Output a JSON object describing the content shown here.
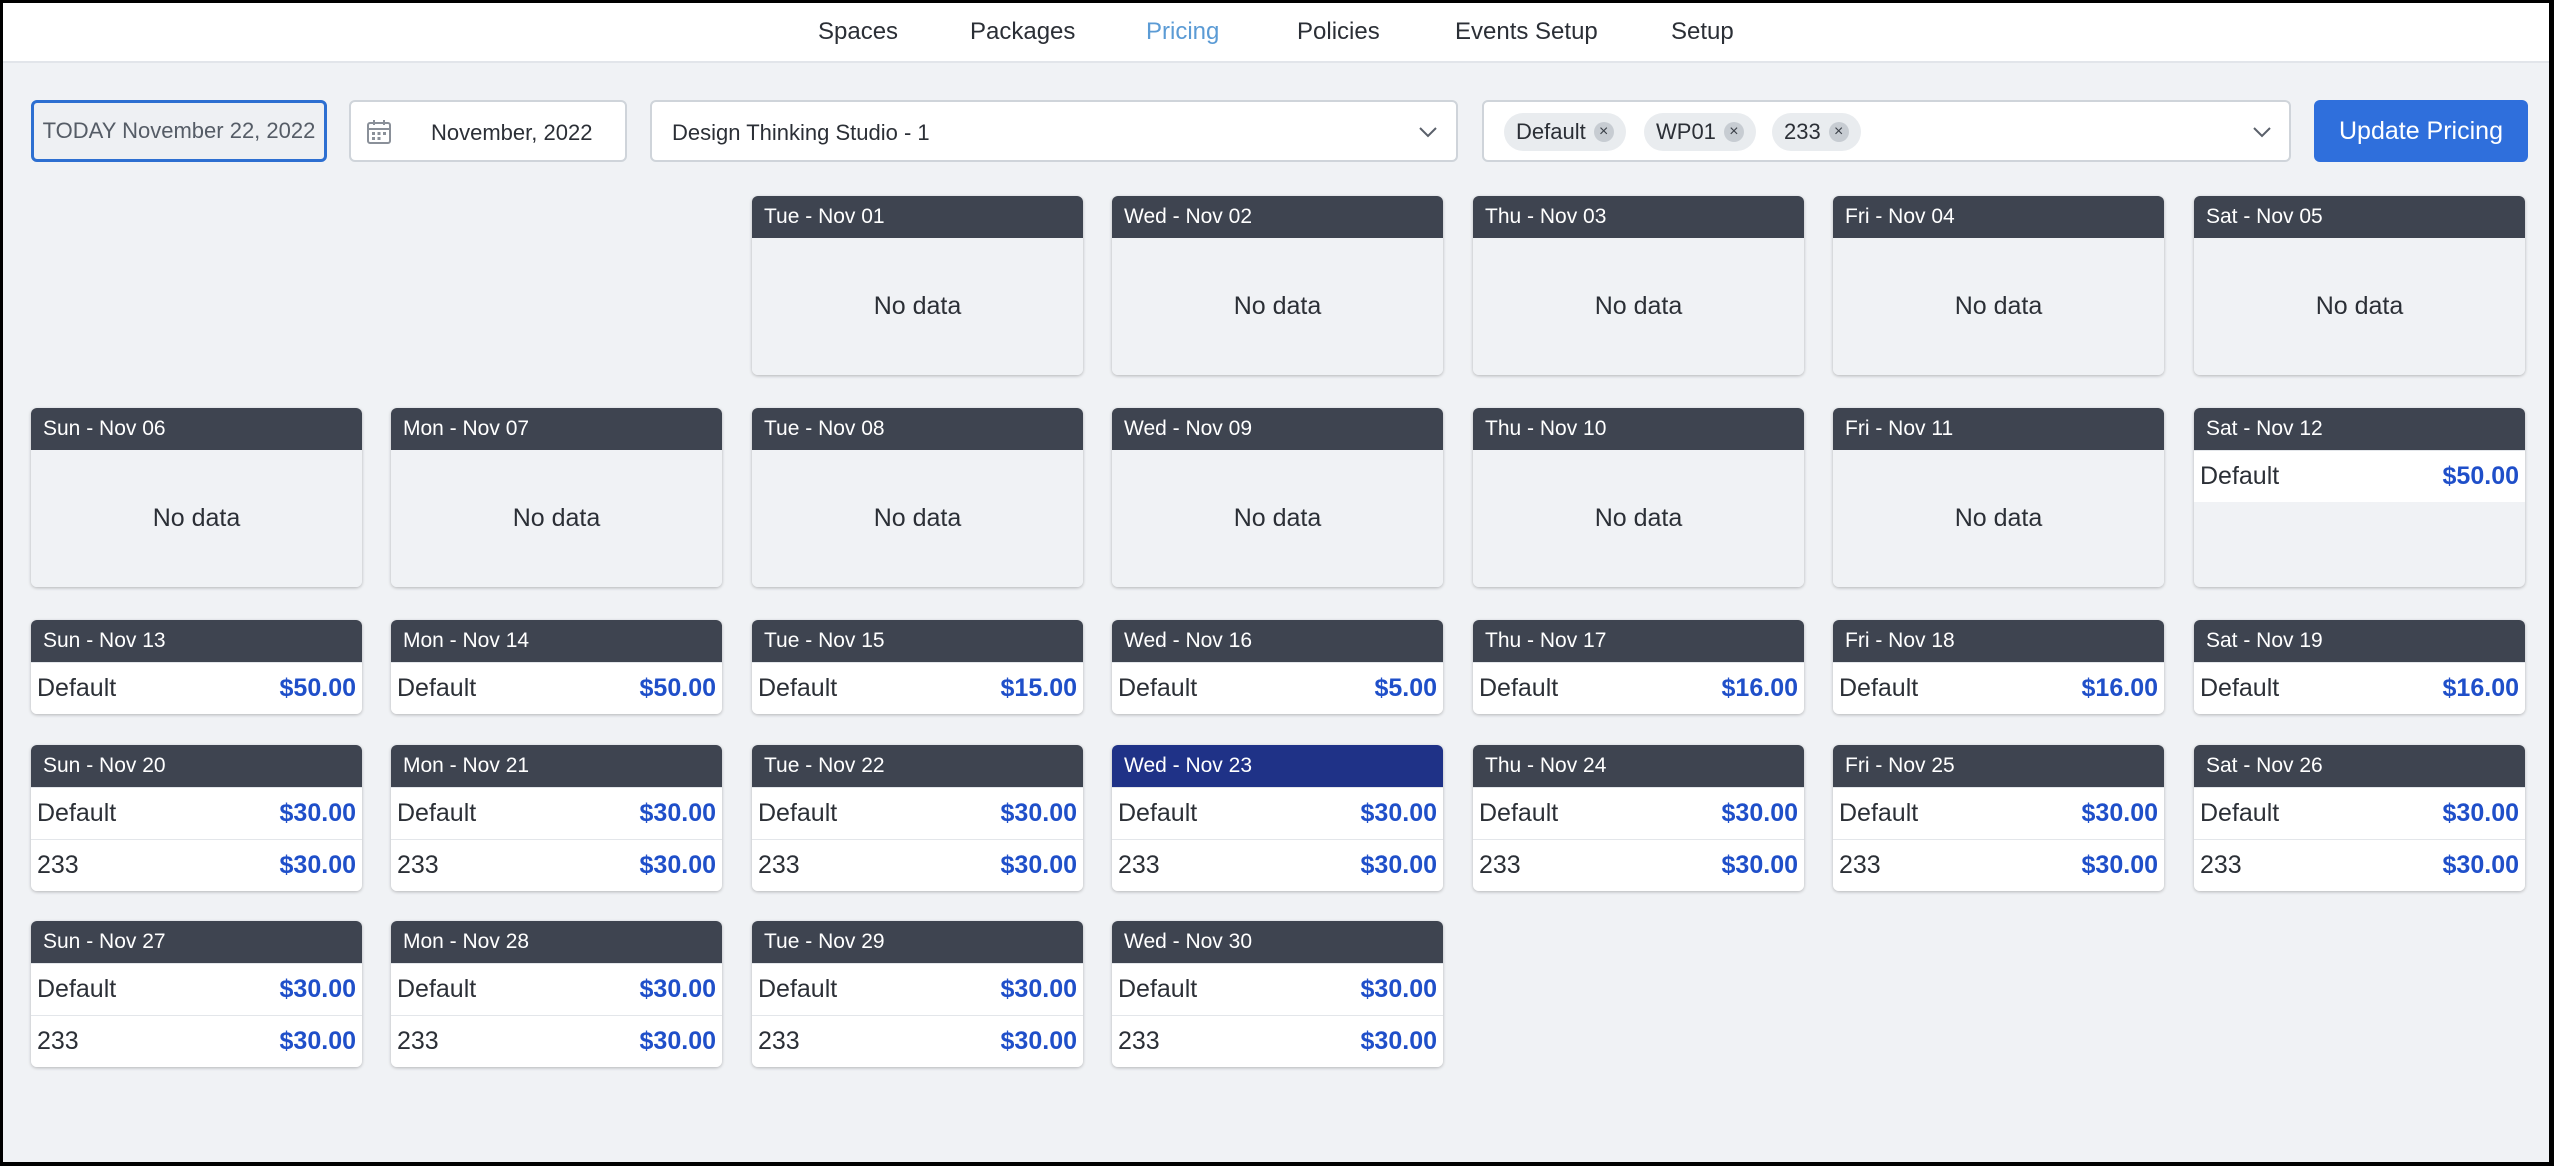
{
  "nav": {
    "items": [
      {
        "label": "Spaces"
      },
      {
        "label": "Packages"
      },
      {
        "label": "Pricing"
      },
      {
        "label": "Policies"
      },
      {
        "label": "Events Setup"
      },
      {
        "label": "Setup"
      }
    ]
  },
  "toolbar": {
    "today_label": "TODAY November 22, 2022",
    "month_value": "November, 2022",
    "space_value": "Design Thinking Studio - 1",
    "tags": [
      {
        "label": "Default"
      },
      {
        "label": "WP01"
      },
      {
        "label": "233"
      }
    ],
    "update_label": "Update Pricing"
  },
  "calendar": {
    "no_data_text": "No data",
    "row1": [
      {
        "head": "Tue - Nov 01"
      },
      {
        "head": "Wed - Nov 02"
      },
      {
        "head": "Thu - Nov 03"
      },
      {
        "head": "Fri - Nov 04"
      },
      {
        "head": "Sat - Nov 05"
      }
    ],
    "row2": [
      {
        "head": "Sun - Nov 06"
      },
      {
        "head": "Mon - Nov 07"
      },
      {
        "head": "Tue - Nov 08"
      },
      {
        "head": "Wed - Nov 09"
      },
      {
        "head": "Thu - Nov 10"
      },
      {
        "head": "Fri - Nov 11"
      },
      {
        "head": "Sat - Nov 12",
        "rows": [
          {
            "name": "Default",
            "price": "$50.00"
          }
        ]
      }
    ],
    "row3": [
      {
        "head": "Sun - Nov 13",
        "rows": [
          {
            "name": "Default",
            "price": "$50.00"
          }
        ]
      },
      {
        "head": "Mon - Nov 14",
        "rows": [
          {
            "name": "Default",
            "price": "$50.00"
          }
        ]
      },
      {
        "head": "Tue - Nov 15",
        "rows": [
          {
            "name": "Default",
            "price": "$15.00"
          }
        ]
      },
      {
        "head": "Wed - Nov 16",
        "rows": [
          {
            "name": "Default",
            "price": "$5.00"
          }
        ]
      },
      {
        "head": "Thu - Nov 17",
        "rows": [
          {
            "name": "Default",
            "price": "$16.00"
          }
        ]
      },
      {
        "head": "Fri - Nov 18",
        "rows": [
          {
            "name": "Default",
            "price": "$16.00"
          }
        ]
      },
      {
        "head": "Sat - Nov 19",
        "rows": [
          {
            "name": "Default",
            "price": "$16.00"
          }
        ]
      }
    ],
    "row4": [
      {
        "head": "Sun - Nov 20",
        "rows": [
          {
            "name": "Default",
            "price": "$30.00"
          },
          {
            "name": "233",
            "price": "$30.00"
          }
        ]
      },
      {
        "head": "Mon - Nov 21",
        "rows": [
          {
            "name": "Default",
            "price": "$30.00"
          },
          {
            "name": "233",
            "price": "$30.00"
          }
        ]
      },
      {
        "head": "Tue - Nov 22",
        "rows": [
          {
            "name": "Default",
            "price": "$30.00"
          },
          {
            "name": "233",
            "price": "$30.00"
          }
        ]
      },
      {
        "head": "Wed - Nov 23",
        "rows": [
          {
            "name": "Default",
            "price": "$30.00"
          },
          {
            "name": "233",
            "price": "$30.00"
          }
        ]
      },
      {
        "head": "Thu - Nov 24",
        "rows": [
          {
            "name": "Default",
            "price": "$30.00"
          },
          {
            "name": "233",
            "price": "$30.00"
          }
        ]
      },
      {
        "head": "Fri - Nov 25",
        "rows": [
          {
            "name": "Default",
            "price": "$30.00"
          },
          {
            "name": "233",
            "price": "$30.00"
          }
        ]
      },
      {
        "head": "Sat - Nov 26",
        "rows": [
          {
            "name": "Default",
            "price": "$30.00"
          },
          {
            "name": "233",
            "price": "$30.00"
          }
        ]
      }
    ],
    "row5": [
      {
        "head": "Sun - Nov 27",
        "rows": [
          {
            "name": "Default",
            "price": "$30.00"
          },
          {
            "name": "233",
            "price": "$30.00"
          }
        ]
      },
      {
        "head": "Mon - Nov 28",
        "rows": [
          {
            "name": "Default",
            "price": "$30.00"
          },
          {
            "name": "233",
            "price": "$30.00"
          }
        ]
      },
      {
        "head": "Tue - Nov 29",
        "rows": [
          {
            "name": "Default",
            "price": "$30.00"
          },
          {
            "name": "233",
            "price": "$30.00"
          }
        ]
      },
      {
        "head": "Wed - Nov 30",
        "rows": [
          {
            "name": "Default",
            "price": "$30.00"
          },
          {
            "name": "233",
            "price": "$30.00"
          }
        ]
      }
    ]
  },
  "colors": {
    "accent": "#2f6fdc",
    "nav_active": "#5b9bd5",
    "day_header": "#3e4450",
    "today_header": "#1f3287",
    "price": "#1f4fc9"
  }
}
